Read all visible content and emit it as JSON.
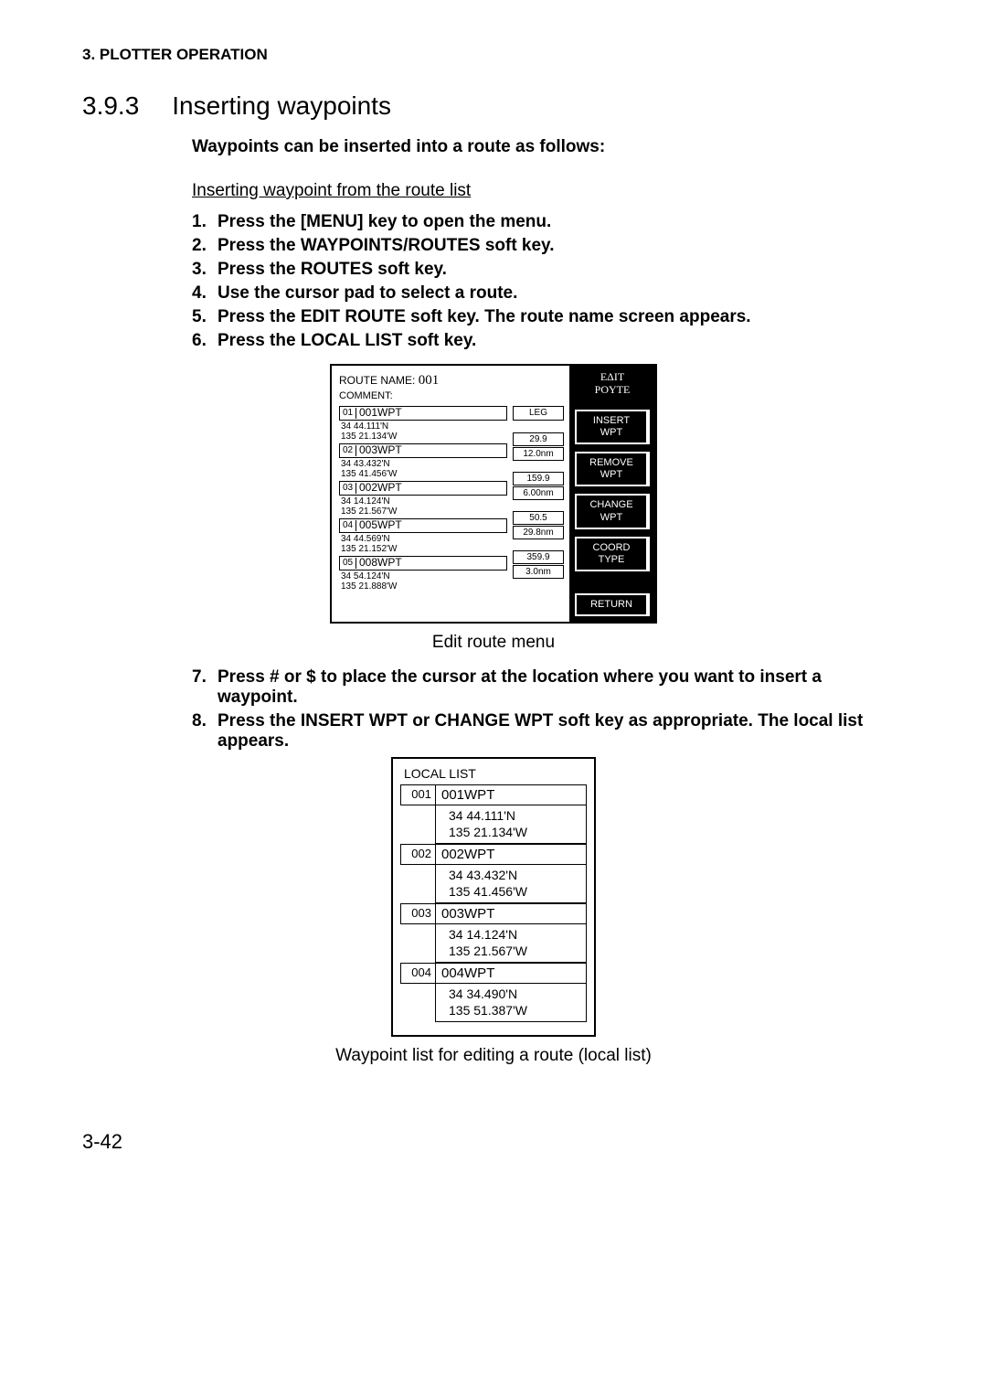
{
  "chapter_header": "3. PLOTTER OPERATION",
  "section_number": "3.9.3",
  "section_title": "Inserting waypoints",
  "intro": "Waypoints can be inserted into a route as follows:",
  "sub_heading": "Inserting waypoint from the route list",
  "steps_a": [
    "Press the [MENU] key to open the menu.",
    "Press the WAYPOINTS/ROUTES soft key.",
    "Press the ROUTES soft key.",
    "Use the cursor pad to select a route.",
    "Press the EDIT ROUTE soft key. The route name screen appears.",
    "Press the LOCAL LIST soft key."
  ],
  "edit_route": {
    "route_name_label": "ROUTE NAME:",
    "route_name_value": "001",
    "comment_label": "COMMENT:",
    "leg_header": "LEG",
    "waypoints": [
      {
        "idx": "01",
        "name": "001WPT",
        "lat": "34 44.111'N",
        "lon": "135 21.134'W"
      },
      {
        "idx": "02",
        "name": "003WPT",
        "lat": "34 43.432'N",
        "lon": "135 41.456'W"
      },
      {
        "idx": "03",
        "name": "002WPT",
        "lat": "34 14.124'N",
        "lon": "135 21.567'W"
      },
      {
        "idx": "04",
        "name": "005WPT",
        "lat": "34 44.569'N",
        "lon": "135 21.152'W"
      },
      {
        "idx": "05",
        "name": "008WPT",
        "lat": "34 54.124'N",
        "lon": "135 21.888'W"
      }
    ],
    "legs": [
      {
        "dist": "29.9",
        "nm": "12.0nm"
      },
      {
        "dist": "159.9",
        "nm": "6.00nm"
      },
      {
        "dist": "50.5",
        "nm": "29.8nm"
      },
      {
        "dist": "359.9",
        "nm": "3.0nm"
      }
    ],
    "right_title": "EΔIT\nPOYTE",
    "softkeys": [
      "INSERT\nWPT",
      "REMOVE\nWPT",
      "CHANGE\nWPT",
      "COORD\nTYPE",
      "RETURN"
    ]
  },
  "caption_edit": "Edit route menu",
  "steps_b": [
    {
      "n": "7.",
      "t": "Press #  or $   to place the cursor at the location where you want to insert a waypoint."
    },
    {
      "n": "8.",
      "t": "Press the INSERT WPT or CHANGE WPT soft key as appropriate. The local list appears."
    }
  ],
  "local_list": {
    "title": "LOCAL LIST",
    "rows": [
      {
        "idx": "001",
        "name": "001WPT",
        "lat": "34 44.111'N",
        "lon": "135 21.134'W"
      },
      {
        "idx": "002",
        "name": "002WPT",
        "lat": "34 43.432'N",
        "lon": "135 41.456'W"
      },
      {
        "idx": "003",
        "name": "003WPT",
        "lat": "34 14.124'N",
        "lon": "135 21.567'W"
      },
      {
        "idx": "004",
        "name": "004WPT",
        "lat": "34 34.490'N",
        "lon": "135 51.387'W"
      }
    ]
  },
  "caption_local": "Waypoint list for editing a route (local list)",
  "page_number": "3-42"
}
